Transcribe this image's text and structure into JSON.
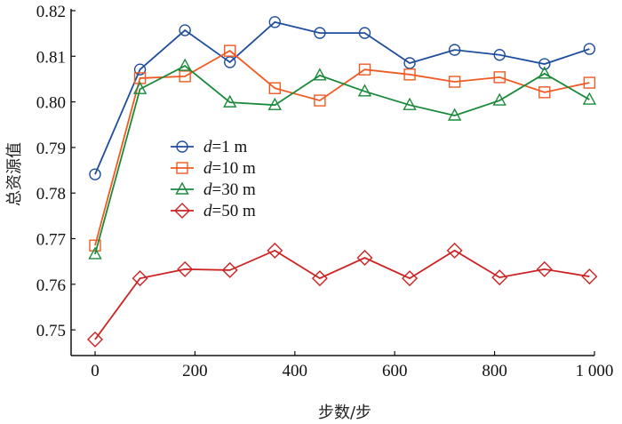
{
  "chart_data": {
    "type": "line",
    "title": "",
    "xlabel": "步数/步",
    "ylabel": "总资源值",
    "xlim": [
      0,
      1000
    ],
    "ylim": [
      0.7444,
      0.82
    ],
    "xticks": [
      0,
      200,
      400,
      600,
      800,
      1000
    ],
    "xtick_labels": [
      "0",
      "200",
      "400",
      "600",
      "800",
      "1 000"
    ],
    "yticks": [
      0.75,
      0.76,
      0.77,
      0.78,
      0.79,
      0.8,
      0.81,
      0.82
    ],
    "ytick_labels": [
      "0.75",
      "0.76",
      "0.77",
      "0.78",
      "0.79",
      "0.80",
      "0.81",
      "0.82"
    ],
    "grid": false,
    "legend_position": "center-left",
    "x": [
      0,
      90,
      180,
      270,
      360,
      450,
      540,
      630,
      720,
      810,
      900,
      990
    ],
    "series": [
      {
        "name": "d=1 m",
        "label_var": "d",
        "label_rest": "=1 m",
        "marker": "circle",
        "color": "#1f4e9c",
        "values": [
          0.7841,
          0.8071,
          0.8157,
          0.8087,
          0.8175,
          0.8151,
          0.8151,
          0.8085,
          0.8114,
          0.8103,
          0.8083,
          0.8116
        ]
      },
      {
        "name": "d=10 m",
        "label_var": "d",
        "label_rest": "=10 m",
        "marker": "square",
        "color": "#f05a22",
        "values": [
          0.7685,
          0.8052,
          0.8056,
          0.8112,
          0.803,
          0.8003,
          0.8071,
          0.806,
          0.8044,
          0.8054,
          0.8021,
          0.8042
        ]
      },
      {
        "name": "d=30 m",
        "label_var": "d",
        "label_rest": "=30 m",
        "marker": "triangle",
        "color": "#1a8a3a",
        "values": [
          0.7666,
          0.8028,
          0.8079,
          0.7999,
          0.7993,
          0.8058,
          0.8023,
          0.7993,
          0.797,
          0.8003,
          0.8062,
          0.8005
        ]
      },
      {
        "name": "d=50 m",
        "label_var": "d",
        "label_rest": "=50 m",
        "marker": "diamond",
        "color": "#cc2222",
        "values": [
          0.7479,
          0.7613,
          0.7633,
          0.7631,
          0.7674,
          0.7613,
          0.7658,
          0.7613,
          0.7674,
          0.7615,
          0.7633,
          0.7617
        ]
      }
    ]
  }
}
